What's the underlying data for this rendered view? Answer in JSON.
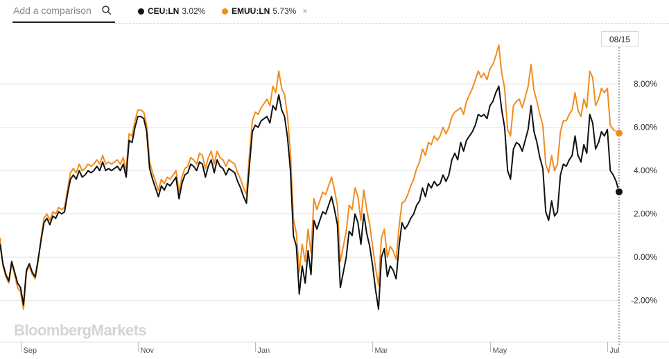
{
  "search": {
    "placeholder": "Add a comparison",
    "icon": "search-icon"
  },
  "legend": [
    {
      "symbol": "CEU:LN",
      "value": "3.02%",
      "color": "#111111"
    },
    {
      "symbol": "EMUU:LN",
      "value": "5.73%",
      "color": "#f08c1e",
      "removable": true
    }
  ],
  "legend_close": "×",
  "date_tag": "08/15",
  "watermark": "BloombergMarkets",
  "chart_data": {
    "type": "line",
    "title": "",
    "xlabel": "",
    "ylabel": "",
    "x_ticks": [
      "Sep",
      "Nov",
      "Jan",
      "Mar",
      "May",
      "Jul"
    ],
    "x_tick_index": [
      7,
      47,
      87,
      127,
      167,
      207
    ],
    "y_ticks": [
      "-2.00%",
      "0.00%",
      "2.00%",
      "4.00%",
      "6.00%",
      "8.00%"
    ],
    "ylim": [
      -3.9,
      10.6
    ],
    "grid": "horizontal",
    "series": [
      {
        "name": "CEU:LN",
        "color": "#111111",
        "end_value": 3.02,
        "values": [
          0.6,
          -0.3,
          -0.8,
          -1.1,
          -0.2,
          -0.7,
          -1.2,
          -1.4,
          -2.2,
          -0.6,
          -0.3,
          -0.7,
          -0.9,
          -0.1,
          0.8,
          1.6,
          1.8,
          1.5,
          1.9,
          1.8,
          2.1,
          2.0,
          2.1,
          2.9,
          3.6,
          3.8,
          3.6,
          4.0,
          3.7,
          3.8,
          4.0,
          3.9,
          4.0,
          4.2,
          4.0,
          4.4,
          4.0,
          4.1,
          4.0,
          4.1,
          4.2,
          4.0,
          4.3,
          3.7,
          5.4,
          5.3,
          6.0,
          6.5,
          6.5,
          6.4,
          5.8,
          4.1,
          3.6,
          3.2,
          2.8,
          3.3,
          3.1,
          3.4,
          3.3,
          3.5,
          3.7,
          2.7,
          3.4,
          3.8,
          3.9,
          4.3,
          4.2,
          4.0,
          4.4,
          4.3,
          3.7,
          4.2,
          4.5,
          3.9,
          4.5,
          4.2,
          4.1,
          3.8,
          4.1,
          4.0,
          3.9,
          3.5,
          3.2,
          2.8,
          2.5,
          4.2,
          5.8,
          6.1,
          6.0,
          6.3,
          6.4,
          6.5,
          6.2,
          7.0,
          6.8,
          7.5,
          6.8,
          6.5,
          5.5,
          4.0,
          1.0,
          0.5,
          -1.7,
          -0.4,
          -1.2,
          0.3,
          -0.8,
          1.7,
          1.3,
          1.7,
          2.1,
          2.0,
          2.4,
          2.8,
          2.2,
          1.5,
          -1.4,
          -0.7,
          0.0,
          1.2,
          1.0,
          2.0,
          1.6,
          0.6,
          2.0,
          1.1,
          0.5,
          -0.4,
          -1.5,
          -2.4,
          0.0,
          0.4,
          -0.9,
          -0.4,
          -0.6,
          -1.0,
          0.5,
          1.6,
          1.3,
          1.5,
          1.8,
          2.0,
          2.4,
          2.6,
          3.2,
          2.8,
          3.4,
          3.2,
          3.5,
          3.3,
          3.4,
          3.8,
          3.5,
          3.8,
          4.5,
          4.8,
          4.5,
          5.3,
          4.9,
          5.4,
          5.6,
          5.8,
          6.1,
          6.6,
          6.5,
          6.6,
          6.4,
          7.0,
          7.2,
          7.6,
          7.9,
          6.8,
          6.0,
          4.0,
          3.6,
          5.0,
          5.3,
          5.2,
          4.9,
          5.4,
          5.9,
          7.0,
          5.8,
          5.3,
          4.6,
          4.1,
          2.1,
          1.7,
          2.6,
          1.9,
          2.1,
          3.8,
          4.3,
          4.2,
          4.5,
          4.7,
          5.6,
          4.7,
          4.4,
          5.2,
          4.8,
          6.6,
          6.2,
          5.0,
          5.3,
          5.8,
          5.6,
          5.9,
          4.0,
          3.8,
          3.5,
          3.02
        ]
      },
      {
        "name": "EMUU:LN",
        "color": "#f08c1e",
        "end_value": 5.73,
        "values": [
          0.9,
          -0.4,
          -0.9,
          -1.2,
          -0.3,
          -0.8,
          -1.4,
          -1.6,
          -2.4,
          -0.7,
          -0.4,
          -0.8,
          -1.0,
          -0.2,
          0.9,
          1.8,
          2.0,
          1.7,
          2.1,
          2.0,
          2.3,
          2.2,
          2.3,
          3.1,
          3.9,
          4.1,
          3.9,
          4.3,
          4.0,
          4.1,
          4.3,
          4.2,
          4.3,
          4.5,
          4.3,
          4.7,
          4.3,
          4.4,
          4.3,
          4.4,
          4.5,
          4.3,
          4.6,
          4.0,
          5.7,
          5.6,
          6.3,
          6.8,
          6.8,
          6.7,
          6.1,
          4.4,
          3.9,
          3.5,
          3.1,
          3.6,
          3.4,
          3.7,
          3.6,
          3.8,
          4.0,
          3.0,
          3.7,
          4.1,
          4.2,
          4.6,
          4.5,
          4.3,
          4.8,
          4.7,
          4.1,
          4.6,
          4.9,
          4.3,
          4.9,
          4.6,
          4.5,
          4.2,
          4.5,
          4.4,
          4.3,
          3.9,
          3.6,
          3.2,
          2.9,
          4.7,
          6.3,
          6.7,
          6.6,
          6.9,
          7.1,
          7.3,
          7.0,
          7.9,
          7.6,
          8.6,
          7.8,
          7.5,
          6.5,
          4.8,
          1.8,
          1.1,
          -0.7,
          0.6,
          -0.2,
          1.3,
          0.2,
          2.7,
          2.2,
          2.6,
          3.0,
          2.9,
          3.3,
          3.7,
          3.1,
          2.4,
          -0.2,
          0.5,
          1.2,
          2.4,
          2.2,
          3.2,
          2.8,
          1.7,
          3.1,
          2.2,
          1.5,
          0.5,
          -0.5,
          -1.3,
          0.9,
          1.3,
          0.0,
          0.5,
          0.3,
          -0.1,
          1.4,
          2.5,
          2.6,
          2.9,
          3.3,
          3.6,
          4.1,
          4.4,
          5.0,
          4.7,
          5.3,
          5.2,
          5.6,
          5.4,
          5.6,
          6.0,
          5.7,
          6.0,
          6.5,
          6.7,
          6.8,
          6.9,
          6.6,
          7.2,
          7.5,
          7.8,
          8.2,
          8.6,
          8.3,
          8.5,
          8.2,
          8.7,
          8.9,
          9.3,
          9.8,
          8.5,
          7.8,
          5.9,
          5.6,
          7.0,
          7.2,
          7.3,
          6.9,
          7.4,
          7.9,
          8.9,
          7.7,
          7.2,
          6.6,
          6.1,
          4.3,
          3.9,
          4.7,
          4.0,
          4.3,
          5.8,
          6.3,
          6.3,
          6.6,
          6.8,
          7.6,
          6.8,
          6.5,
          7.3,
          6.9,
          8.6,
          8.3,
          7.0,
          7.3,
          7.8,
          7.6,
          7.8,
          6.1,
          5.9,
          5.8,
          5.73
        ]
      }
    ]
  }
}
